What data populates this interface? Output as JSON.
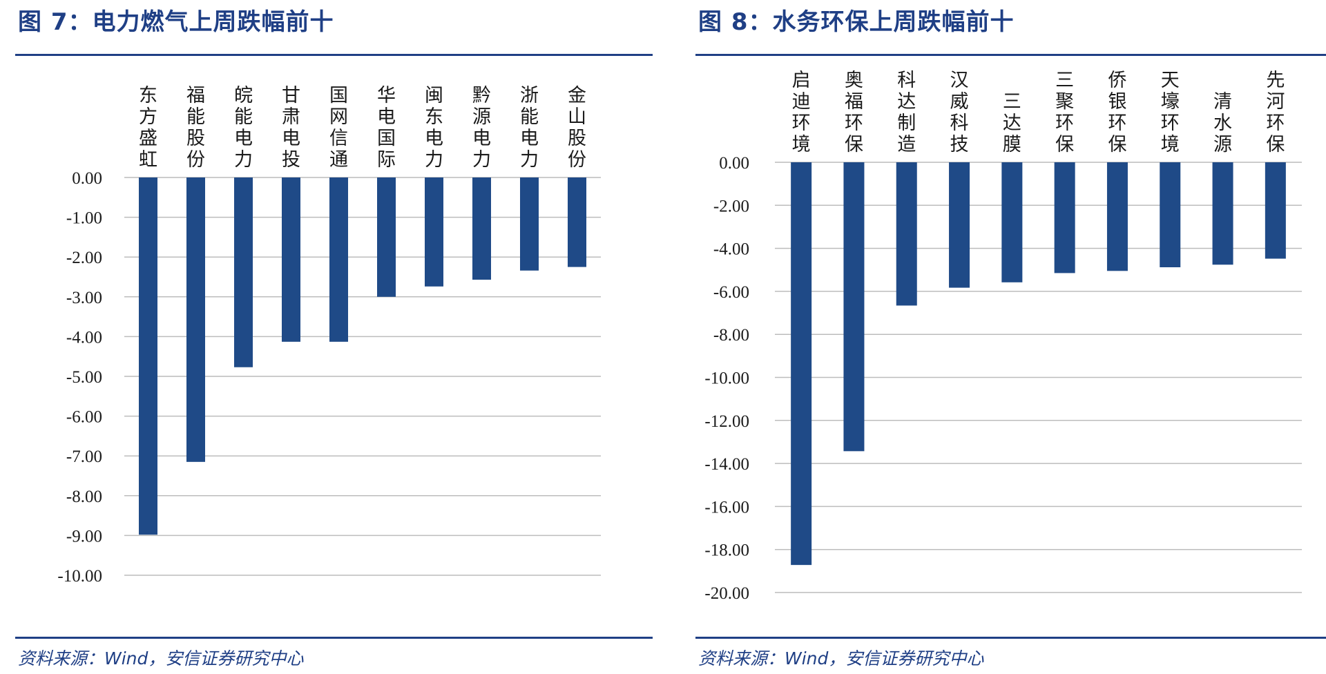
{
  "colors": {
    "accent": "#1f3f85",
    "bar": "#1f4a87",
    "grid": "#bcbcbc"
  },
  "chart_data": [
    {
      "type": "bar",
      "title": "图 7：电力燃气上周跌幅前十",
      "source": "资料来源：Wind，安信证券研究中心",
      "categories": [
        "东方盛虹",
        "福能股份",
        "皖能电力",
        "甘肃电投",
        "国网信通",
        "华电国际",
        "闽东电力",
        "黔源电力",
        "浙能电力",
        "金山股份"
      ],
      "values": [
        -8.98,
        -7.15,
        -4.77,
        -4.13,
        -4.13,
        -3.0,
        -2.74,
        -2.57,
        -2.34,
        -2.25
      ],
      "ylim": [
        -10,
        0
      ],
      "yticks": [
        "0.00",
        "-1.00",
        "-2.00",
        "-3.00",
        "-4.00",
        "-5.00",
        "-6.00",
        "-7.00",
        "-8.00",
        "-9.00",
        "-10.00"
      ],
      "grid": true
    },
    {
      "type": "bar",
      "title": "图 8：水务环保上周跌幅前十",
      "source": "资料来源：Wind，安信证券研究中心",
      "categories": [
        "启迪环境",
        "奥福环保",
        "科达制造",
        "汉威科技",
        "三达膜",
        "三聚环保",
        "侨银环保",
        "天壕环境",
        "清水源",
        "先河环保"
      ],
      "values": [
        -18.72,
        -13.43,
        -6.66,
        -5.83,
        -5.58,
        -5.15,
        -5.05,
        -4.88,
        -4.76,
        -4.48
      ],
      "ylim": [
        -20,
        0
      ],
      "yticks": [
        "0.00",
        "-2.00",
        "-4.00",
        "-6.00",
        "-8.00",
        "-10.00",
        "-12.00",
        "-14.00",
        "-16.00",
        "-18.00",
        "-20.00"
      ],
      "grid": true
    }
  ]
}
